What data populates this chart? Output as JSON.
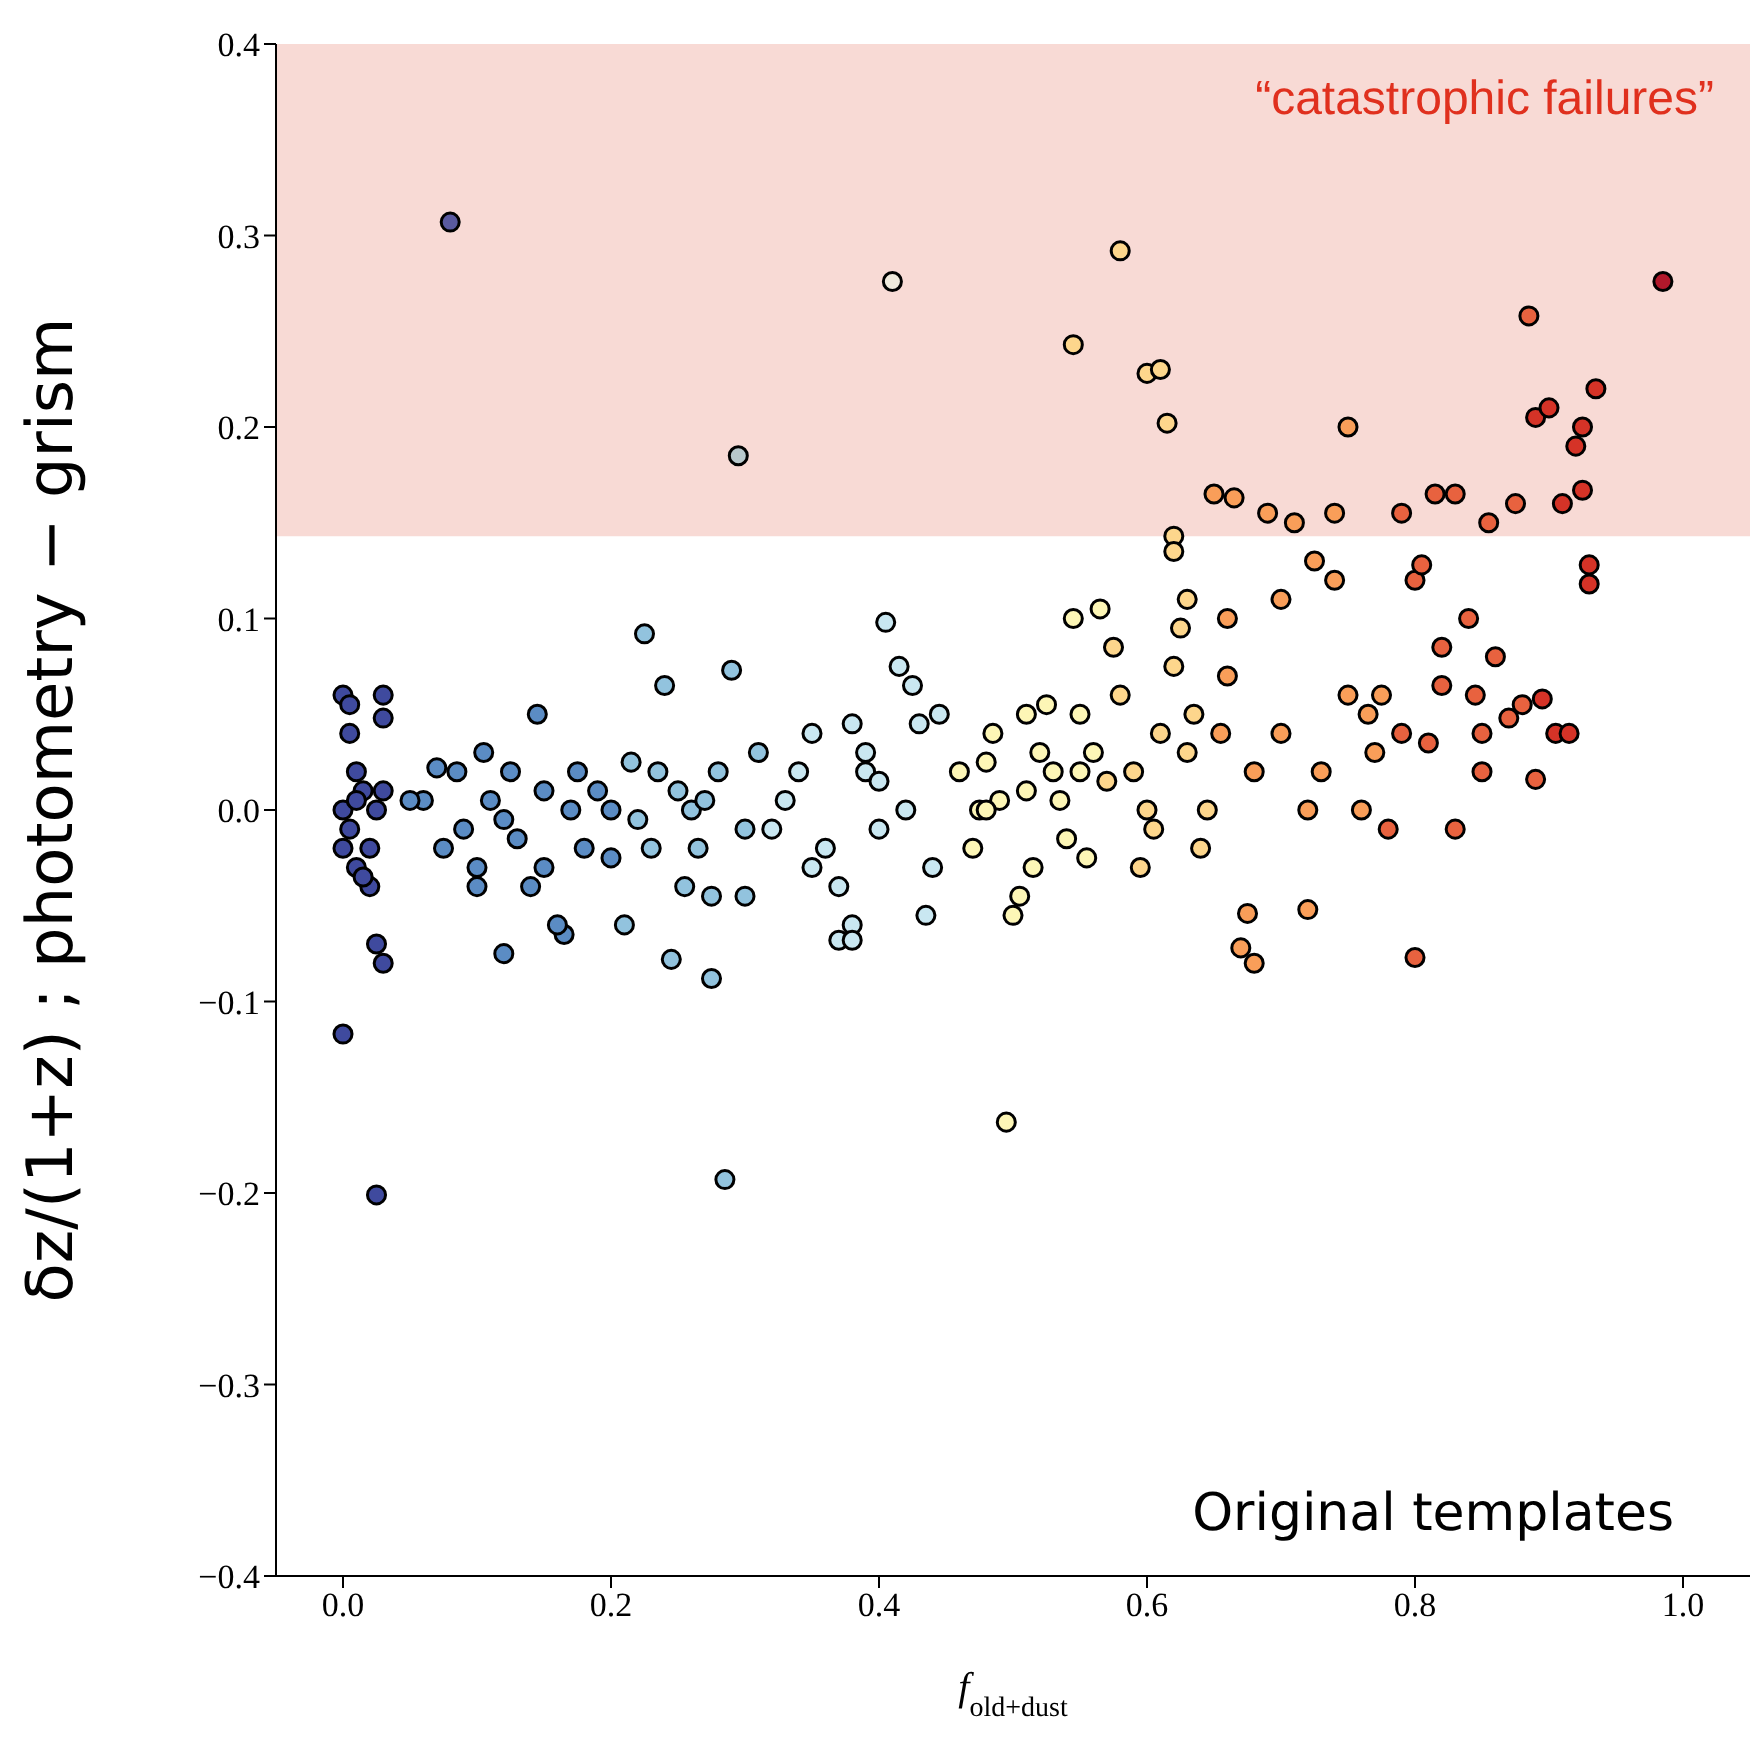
{
  "chart_data": {
    "type": "scatter",
    "xlabel": "f$_{old+dust}$",
    "ylabel": "δz/(1+z) ; photometry − grism",
    "xlim": [
      -0.05,
      1.05
    ],
    "xticks": [
      {
        "value": 0,
        "label": "0.0"
      },
      {
        "value": 0.2,
        "label": "0.2"
      },
      {
        "value": 0.4,
        "label": "0.4"
      },
      {
        "value": 0.6,
        "label": "0.6"
      },
      {
        "value": 0.8,
        "label": "0.8"
      },
      {
        "value": 1,
        "label": "1.0"
      }
    ],
    "ylim": [
      -0.4,
      0.4
    ],
    "yticks": [
      {
        "value": -0.4,
        "label": "−0.4"
      },
      {
        "value": -0.3,
        "label": "−0.3"
      },
      {
        "value": -0.2,
        "label": "−0.2"
      },
      {
        "value": -0.1,
        "label": "−0.1"
      },
      {
        "value": 0,
        "label": "0.0"
      },
      {
        "value": 0.1,
        "label": "0.1"
      },
      {
        "value": 0.2,
        "label": "0.2"
      },
      {
        "value": 0.3,
        "label": "0.3"
      },
      {
        "value": 0.4,
        "label": "0.4"
      }
    ],
    "bands": [
      {
        "axis": "y",
        "from": 0.143,
        "to": 0.4,
        "label": "“catastrophic failures”",
        "color": "#f8dad5"
      }
    ],
    "annotations": [
      "Original templates"
    ],
    "marker": "circle",
    "grid": false,
    "series": [
      {
        "color": "#3f4a9e",
        "x": [
          0.0,
          0.025,
          0.0,
          0.005,
          0.03,
          0.03,
          0.01,
          0.015,
          0.0,
          0.005,
          0.0,
          0.01,
          0.02,
          0.02,
          0.025,
          0.03,
          0.025,
          0.015,
          0.01,
          0.03,
          0.005
        ],
        "values": [
          -0.117,
          -0.201,
          0.06,
          0.055,
          0.06,
          0.048,
          0.02,
          0.01,
          0.0,
          -0.01,
          -0.02,
          -0.03,
          -0.02,
          -0.04,
          -0.07,
          -0.08,
          0.0,
          -0.035,
          0.005,
          0.01,
          0.04
        ]
      },
      {
        "color": "#5a5aa0",
        "x": [
          0.08
        ],
        "values": [
          0.307
        ]
      },
      {
        "color": "#5b8cc4",
        "x": [
          0.06,
          0.07,
          0.085,
          0.09,
          0.1,
          0.1,
          0.105,
          0.11,
          0.12,
          0.12,
          0.125,
          0.13,
          0.14,
          0.145,
          0.15,
          0.15,
          0.165,
          0.17,
          0.175,
          0.18,
          0.19,
          0.2,
          0.2,
          0.075,
          0.05,
          0.16
        ],
        "values": [
          0.005,
          0.022,
          0.02,
          -0.01,
          -0.03,
          -0.04,
          0.03,
          0.005,
          -0.075,
          -0.005,
          0.02,
          -0.015,
          -0.04,
          0.05,
          0.01,
          -0.03,
          -0.065,
          0.0,
          0.02,
          -0.02,
          0.01,
          0.0,
          -0.025,
          -0.02,
          0.005,
          -0.06
        ]
      },
      {
        "color": "#92c3de",
        "x": [
          0.21,
          0.215,
          0.22,
          0.225,
          0.23,
          0.24,
          0.245,
          0.25,
          0.255,
          0.26,
          0.265,
          0.275,
          0.275,
          0.28,
          0.285,
          0.29,
          0.3,
          0.3,
          0.31,
          0.235,
          0.27
        ],
        "values": [
          -0.06,
          0.025,
          -0.005,
          0.092,
          -0.02,
          0.065,
          -0.078,
          0.01,
          -0.04,
          0.0,
          -0.02,
          -0.088,
          -0.045,
          0.02,
          -0.193,
          0.073,
          -0.045,
          -0.01,
          0.03,
          0.02,
          0.005
        ]
      },
      {
        "color": "#b8c8cc",
        "x": [
          0.295
        ],
        "values": [
          0.185
        ]
      },
      {
        "color": "#c9e7f1",
        "x": [
          0.32,
          0.33,
          0.34,
          0.35,
          0.35,
          0.36,
          0.37,
          0.37,
          0.38,
          0.38,
          0.38,
          0.39,
          0.39,
          0.4,
          0.405,
          0.415,
          0.42,
          0.425,
          0.43,
          0.435,
          0.44,
          0.445,
          0.4
        ],
        "values": [
          -0.01,
          0.005,
          0.02,
          -0.03,
          0.04,
          -0.02,
          -0.04,
          -0.068,
          -0.06,
          -0.068,
          0.045,
          0.03,
          0.02,
          0.015,
          0.098,
          0.075,
          0.0,
          0.065,
          0.045,
          -0.055,
          -0.03,
          0.05,
          -0.01
        ]
      },
      {
        "color": "#efe9dc",
        "x": [
          0.41
        ],
        "values": [
          0.276
        ]
      },
      {
        "color": "#fdf6b6",
        "x": [
          0.46,
          0.47,
          0.475,
          0.48,
          0.485,
          0.49,
          0.495,
          0.5,
          0.505,
          0.51,
          0.515,
          0.52,
          0.525,
          0.53,
          0.535,
          0.54,
          0.545,
          0.55,
          0.555,
          0.56,
          0.565,
          0.48,
          0.51,
          0.55
        ],
        "values": [
          0.02,
          -0.02,
          0.0,
          0.025,
          0.04,
          0.005,
          -0.163,
          -0.055,
          -0.045,
          0.01,
          -0.03,
          0.03,
          0.055,
          0.02,
          0.005,
          -0.015,
          0.1,
          0.05,
          -0.025,
          0.03,
          0.105,
          0.0,
          0.05,
          0.02
        ]
      },
      {
        "color": "#fdd68c",
        "x": [
          0.545,
          0.58,
          0.575,
          0.58,
          0.59,
          0.595,
          0.6,
          0.61,
          0.615,
          0.62,
          0.62,
          0.6,
          0.61,
          0.62,
          0.625,
          0.63,
          0.635,
          0.64,
          0.645,
          0.57,
          0.605,
          0.63
        ],
        "values": [
          0.243,
          0.292,
          0.085,
          0.06,
          0.02,
          -0.03,
          0.228,
          0.23,
          0.202,
          0.143,
          0.135,
          0.0,
          0.04,
          0.075,
          0.095,
          0.11,
          0.05,
          -0.02,
          0.0,
          0.015,
          -0.01,
          0.03
        ]
      },
      {
        "color": "#f99e59",
        "x": [
          0.65,
          0.665,
          0.67,
          0.675,
          0.68,
          0.69,
          0.7,
          0.71,
          0.72,
          0.725,
          0.73,
          0.74,
          0.75,
          0.75,
          0.76,
          0.77,
          0.66,
          0.66,
          0.68,
          0.7,
          0.72,
          0.74,
          0.765,
          0.775,
          0.655
        ],
        "values": [
          0.165,
          0.163,
          -0.072,
          -0.054,
          -0.08,
          0.155,
          0.04,
          0.15,
          -0.052,
          0.13,
          0.02,
          0.155,
          0.2,
          0.06,
          0.0,
          0.03,
          0.1,
          0.07,
          0.02,
          0.11,
          0.0,
          0.12,
          0.05,
          0.06,
          0.04
        ]
      },
      {
        "color": "#e8623f",
        "x": [
          0.78,
          0.79,
          0.8,
          0.8,
          0.805,
          0.81,
          0.815,
          0.82,
          0.83,
          0.84,
          0.845,
          0.85,
          0.855,
          0.86,
          0.87,
          0.875,
          0.88,
          0.885,
          0.89,
          0.79,
          0.83,
          0.85,
          0.82
        ],
        "values": [
          -0.01,
          0.155,
          -0.077,
          0.12,
          0.128,
          0.035,
          0.165,
          0.085,
          0.165,
          0.1,
          0.06,
          0.02,
          0.15,
          0.08,
          0.048,
          0.16,
          0.055,
          0.258,
          0.016,
          0.04,
          -0.01,
          0.04,
          0.065
        ]
      },
      {
        "color": "#d53327",
        "x": [
          0.89,
          0.9,
          0.905,
          0.91,
          0.92,
          0.925,
          0.925,
          0.93,
          0.93,
          0.935,
          0.895,
          0.915
        ],
        "values": [
          0.205,
          0.21,
          0.04,
          0.16,
          0.19,
          0.2,
          0.167,
          0.118,
          0.128,
          0.22,
          0.058,
          0.04
        ]
      },
      {
        "color": "#b2182b",
        "x": [
          0.985
        ],
        "values": [
          0.276
        ]
      }
    ]
  }
}
